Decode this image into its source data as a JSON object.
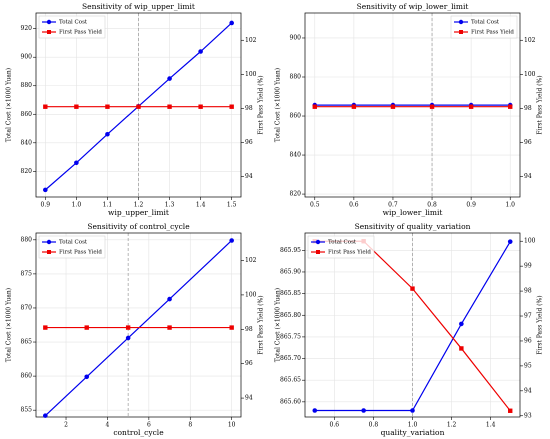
{
  "chart_data": [
    {
      "type": "line",
      "title": "Sensitivity of wip_upper_limit",
      "xlabel": "wip_upper_limit",
      "ylabel": "Total Cost (×1000 Yuan)",
      "y2label": "First Pass Yield (%)",
      "x": [
        0.9,
        1.0,
        1.1,
        1.2,
        1.3,
        1.4,
        1.5
      ],
      "series": [
        {
          "name": "Total Cost",
          "color": "#0000ee",
          "values": [
            807,
            826,
            846,
            865.6,
            885,
            904,
            924
          ]
        },
        {
          "name": "First Pass Yield",
          "color": "#ee0000",
          "axis": "y2",
          "values": [
            98.1,
            98.1,
            98.1,
            98.1,
            98.1,
            98.1,
            98.1
          ]
        }
      ],
      "xlim": [
        0.87,
        1.53
      ],
      "ylim": [
        802,
        931
      ],
      "y2lim": [
        92.8,
        103.6
      ],
      "xticks": [
        0.9,
        {
          "value": 1.0,
          "label": "1.0"
        },
        1.1,
        1.2,
        1.3,
        1.4,
        1.5
      ],
      "yticks": [
        820,
        840,
        860,
        880,
        900,
        920
      ],
      "y2ticks": [
        94,
        96,
        98,
        100,
        102
      ],
      "vline": 1.2,
      "grid": true,
      "legend": "upper left"
    },
    {
      "type": "line",
      "title": "Sensitivity of wip_lower_limit",
      "xlabel": "wip_lower_limit",
      "ylabel": "Total Cost (×1000 Yuan)",
      "y2label": "First Pass Yield (%)",
      "x": [
        0.5,
        0.6,
        0.7,
        0.8,
        0.9,
        1.0
      ],
      "series": [
        {
          "name": "Total Cost",
          "color": "#0000ee",
          "values": [
            865.6,
            865.6,
            865.6,
            865.6,
            865.6,
            865.6
          ]
        },
        {
          "name": "First Pass Yield",
          "color": "#ee0000",
          "axis": "y2",
          "values": [
            98.1,
            98.1,
            98.1,
            98.1,
            98.1,
            98.1
          ]
        }
      ],
      "xlim": [
        0.475,
        1.025
      ],
      "ylim": [
        818.5,
        912.8
      ],
      "y2lim": [
        92.8,
        103.6
      ],
      "xticks": [
        0.5,
        0.6,
        0.7,
        0.8,
        0.9,
        {
          "value": 1.0,
          "label": "1.0"
        }
      ],
      "yticks": [
        820,
        840,
        860,
        880,
        900
      ],
      "y2ticks": [
        94,
        96,
        98,
        100,
        102
      ],
      "vline": 0.8,
      "grid": true,
      "legend": "upper right"
    },
    {
      "type": "line",
      "title": "Sensitivity of control_cycle",
      "xlabel": "control_cycle",
      "ylabel": "Total Cost (×1000 Yuan)",
      "y2label": "First Pass Yield (%)",
      "x": [
        1,
        3,
        5,
        7,
        10
      ],
      "series": [
        {
          "name": "Total Cost",
          "color": "#0000ee",
          "values": [
            854.2,
            859.9,
            865.6,
            871.3,
            879.9
          ]
        },
        {
          "name": "First Pass Yield",
          "color": "#ee0000",
          "axis": "y2",
          "values": [
            98.1,
            98.1,
            98.1,
            98.1,
            98.1
          ]
        }
      ],
      "xlim": [
        0.55,
        10.45
      ],
      "ylim": [
        854,
        881
      ],
      "y2lim": [
        92.9,
        103.6
      ],
      "xticks": [
        2,
        4,
        6,
        8,
        10
      ],
      "yticks": [
        855,
        860,
        865,
        870,
        875,
        880
      ],
      "y2ticks": [
        94,
        96,
        98,
        100,
        102
      ],
      "vline": 5,
      "grid": true,
      "legend": "upper left"
    },
    {
      "type": "line",
      "title": "Sensitivity of quality_variation",
      "xlabel": "quality_variation",
      "ylabel": "Total Cost (×1000 Yuan)",
      "y2label": "First Pass Yield (%)",
      "x": [
        0.5,
        0.75,
        1.0,
        1.25,
        1.5
      ],
      "series": [
        {
          "name": "Total Cost",
          "color": "#0000ee",
          "values": [
            865.58,
            865.58,
            865.58,
            865.78,
            865.97
          ]
        },
        {
          "name": "First Pass Yield",
          "color": "#ee0000",
          "axis": "y2",
          "values": [
            100,
            100,
            98.1,
            95.7,
            93.2
          ]
        }
      ],
      "xlim": [
        0.45,
        1.55
      ],
      "ylim": [
        865.565,
        865.99
      ],
      "y2lim": [
        92.95,
        100.33
      ],
      "xticks": [
        0.6,
        0.8,
        {
          "value": 1.0,
          "label": "1.0"
        },
        1.2,
        1.4
      ],
      "yticks": [
        {
          "value": 865.6,
          "label": "865.60"
        },
        865.65,
        {
          "value": 865.7,
          "label": "865.70"
        },
        865.75,
        {
          "value": 865.8,
          "label": "865.80"
        },
        865.85,
        {
          "value": 865.9,
          "label": "865.90"
        },
        865.95
      ],
      "y2ticks": [
        93,
        94,
        95,
        96,
        97,
        98,
        99,
        100
      ],
      "vline": 1.0,
      "grid": true,
      "legend": "upper left"
    }
  ]
}
